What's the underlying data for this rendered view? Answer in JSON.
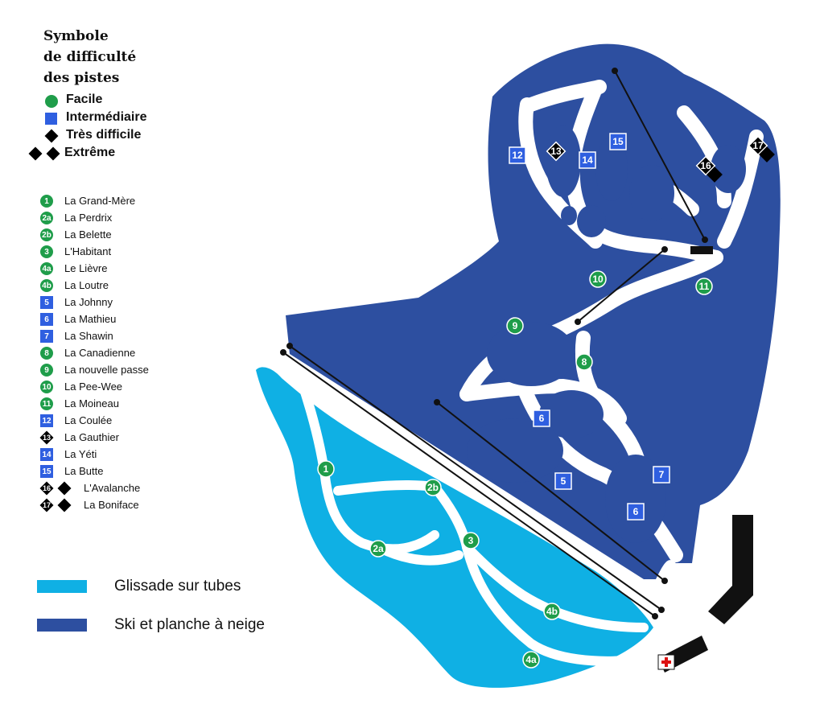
{
  "legend": {
    "title_lines": [
      "Symbole",
      "de difficulté",
      "des pistes"
    ],
    "difficulty": [
      {
        "label": "Facile",
        "icon": "circle-green-icon"
      },
      {
        "label": "Intermédiaire",
        "icon": "square-blue-icon"
      },
      {
        "label": "Très difficile",
        "icon": "diamond-black-icon"
      },
      {
        "label": "Extrême",
        "icon": "double-diamond-black-icon"
      }
    ],
    "runs": [
      {
        "num": "1",
        "level": "green",
        "name": "La Grand-Mère"
      },
      {
        "num": "2a",
        "level": "green",
        "name": "La Perdrix"
      },
      {
        "num": "2b",
        "level": "green",
        "name": "La Belette"
      },
      {
        "num": "3",
        "level": "green",
        "name": "L'Habitant"
      },
      {
        "num": "4a",
        "level": "green",
        "name": "Le Lièvre"
      },
      {
        "num": "4b",
        "level": "green",
        "name": "La Loutre"
      },
      {
        "num": "5",
        "level": "blue",
        "name": "La Johnny"
      },
      {
        "num": "6",
        "level": "blue",
        "name": "La Mathieu"
      },
      {
        "num": "7",
        "level": "blue",
        "name": "La Shawin"
      },
      {
        "num": "8",
        "level": "green",
        "name": "La Canadienne"
      },
      {
        "num": "9",
        "level": "green",
        "name": "La nouvelle passe"
      },
      {
        "num": "10",
        "level": "green",
        "name": "La Pee-Wee"
      },
      {
        "num": "11",
        "level": "green",
        "name": "La Moineau"
      },
      {
        "num": "12",
        "level": "blue",
        "name": "La Coulée"
      },
      {
        "num": "13",
        "level": "black",
        "name": "La Gauthier"
      },
      {
        "num": "14",
        "level": "blue",
        "name": "La Yéti"
      },
      {
        "num": "15",
        "level": "blue",
        "name": "La Butte"
      },
      {
        "num": "16",
        "level": "double-black",
        "name": "L'Avalanche"
      },
      {
        "num": "17",
        "level": "double-black",
        "name": "La Boniface"
      }
    ],
    "areas": [
      {
        "label": "Glissade sur tubes",
        "color": "#0fb0e4"
      },
      {
        "label": "Ski et planche à neige",
        "color": "#2d4fa0"
      }
    ]
  },
  "colors": {
    "ski": "#2d4fa0",
    "tubes": "#0fb0e4",
    "green": "#1f9d4a",
    "blue": "#2f5fe0"
  },
  "map_markers": [
    "12",
    "13",
    "14",
    "15",
    "16",
    "17",
    "10",
    "11",
    "9",
    "8",
    "6",
    "6",
    "5",
    "7",
    "1",
    "2b",
    "2a",
    "3",
    "4b",
    "4a"
  ]
}
